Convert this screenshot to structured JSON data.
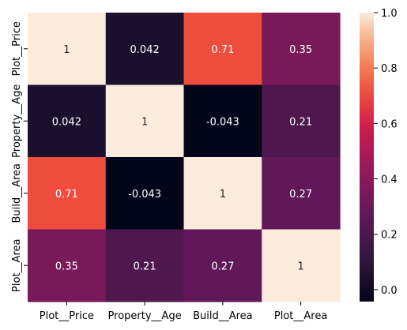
{
  "chart_data": {
    "type": "heatmap",
    "row_labels": [
      "Plot__Price",
      "Property__Age",
      "Build__Area",
      "Plot__Area"
    ],
    "col_labels": [
      "Plot__Price",
      "Property__Age",
      "Build__Area",
      "Plot__Area"
    ],
    "values": [
      [
        1,
        0.042,
        0.71,
        0.35
      ],
      [
        0.042,
        1,
        -0.043,
        0.21
      ],
      [
        0.71,
        -0.043,
        1,
        0.27
      ],
      [
        0.35,
        0.21,
        0.27,
        1
      ]
    ],
    "annotations": [
      [
        "1",
        "0.042",
        "0.71",
        "0.35"
      ],
      [
        "0.042",
        "1",
        "-0.043",
        "0.21"
      ],
      [
        "0.71",
        "-0.043",
        "1",
        "0.27"
      ],
      [
        "0.35",
        "0.21",
        "0.27",
        "1"
      ]
    ],
    "colorscale": "rocket",
    "colorbar": {
      "range": [
        -0.043,
        1.0
      ],
      "ticks": [
        0.0,
        0.2,
        0.4,
        0.6,
        0.8,
        1.0
      ],
      "tick_labels": [
        "0.0",
        "0.2",
        "0.4",
        "0.6",
        "0.8",
        "1.0"
      ]
    },
    "title": "",
    "xlabel": "",
    "ylabel": ""
  }
}
